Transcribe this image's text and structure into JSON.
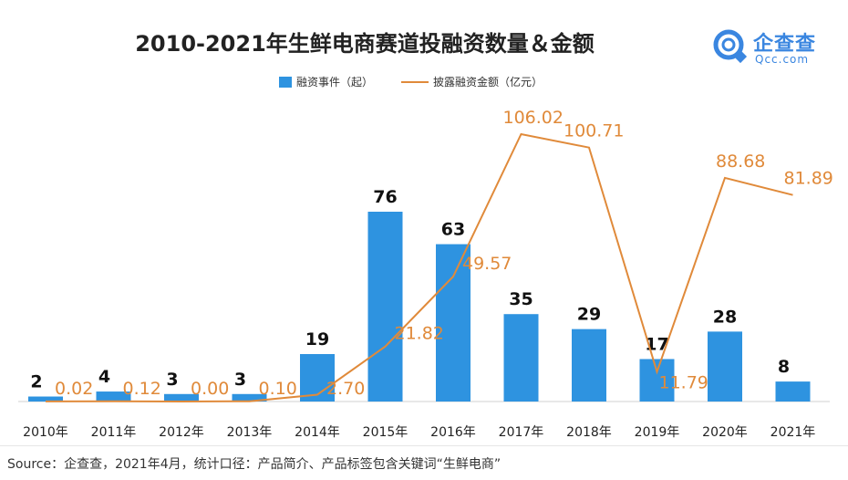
{
  "title": "2010-2021年生鲜电商赛道投融资数量＆金额",
  "logo": {
    "cn": "企查查",
    "en": "Qcc.com"
  },
  "source": "Source：企查查，2021年4月，统计口径：产品简介、产品标签包含关键词“生鲜电商”",
  "colors": {
    "bar": "#2e93e0",
    "line": "#e08a3a"
  },
  "chart_data": {
    "type": "bar+line",
    "categories": [
      "2010年",
      "2011年",
      "2012年",
      "2013年",
      "2014年",
      "2015年",
      "2016年",
      "2017年",
      "2018年",
      "2019年",
      "2020年",
      "2021年"
    ],
    "series": [
      {
        "name": "融资事件（起）",
        "type": "bar",
        "values": [
          2,
          4,
          3,
          3,
          19,
          76,
          63,
          35,
          29,
          17,
          28,
          8
        ],
        "labels": [
          "2",
          "4",
          "3",
          "3",
          "19",
          "76",
          "63",
          "35",
          "29",
          "17",
          "28",
          "8"
        ]
      },
      {
        "name": "披露融资金额（亿元）",
        "type": "line",
        "values": [
          0.02,
          0.12,
          0.0,
          0.1,
          2.7,
          21.82,
          49.57,
          106.02,
          100.71,
          11.79,
          88.68,
          81.89
        ],
        "labels": [
          "0.02",
          "0.12",
          "0.00",
          "0.10",
          "2.70",
          "21.82",
          "49.57",
          "106.02",
          "100.71",
          "11.79",
          "88.68",
          "81.89"
        ]
      }
    ],
    "bar_ylim": [
      0,
      80
    ],
    "line_ylim": [
      0,
      115
    ],
    "legend": "top-center"
  }
}
